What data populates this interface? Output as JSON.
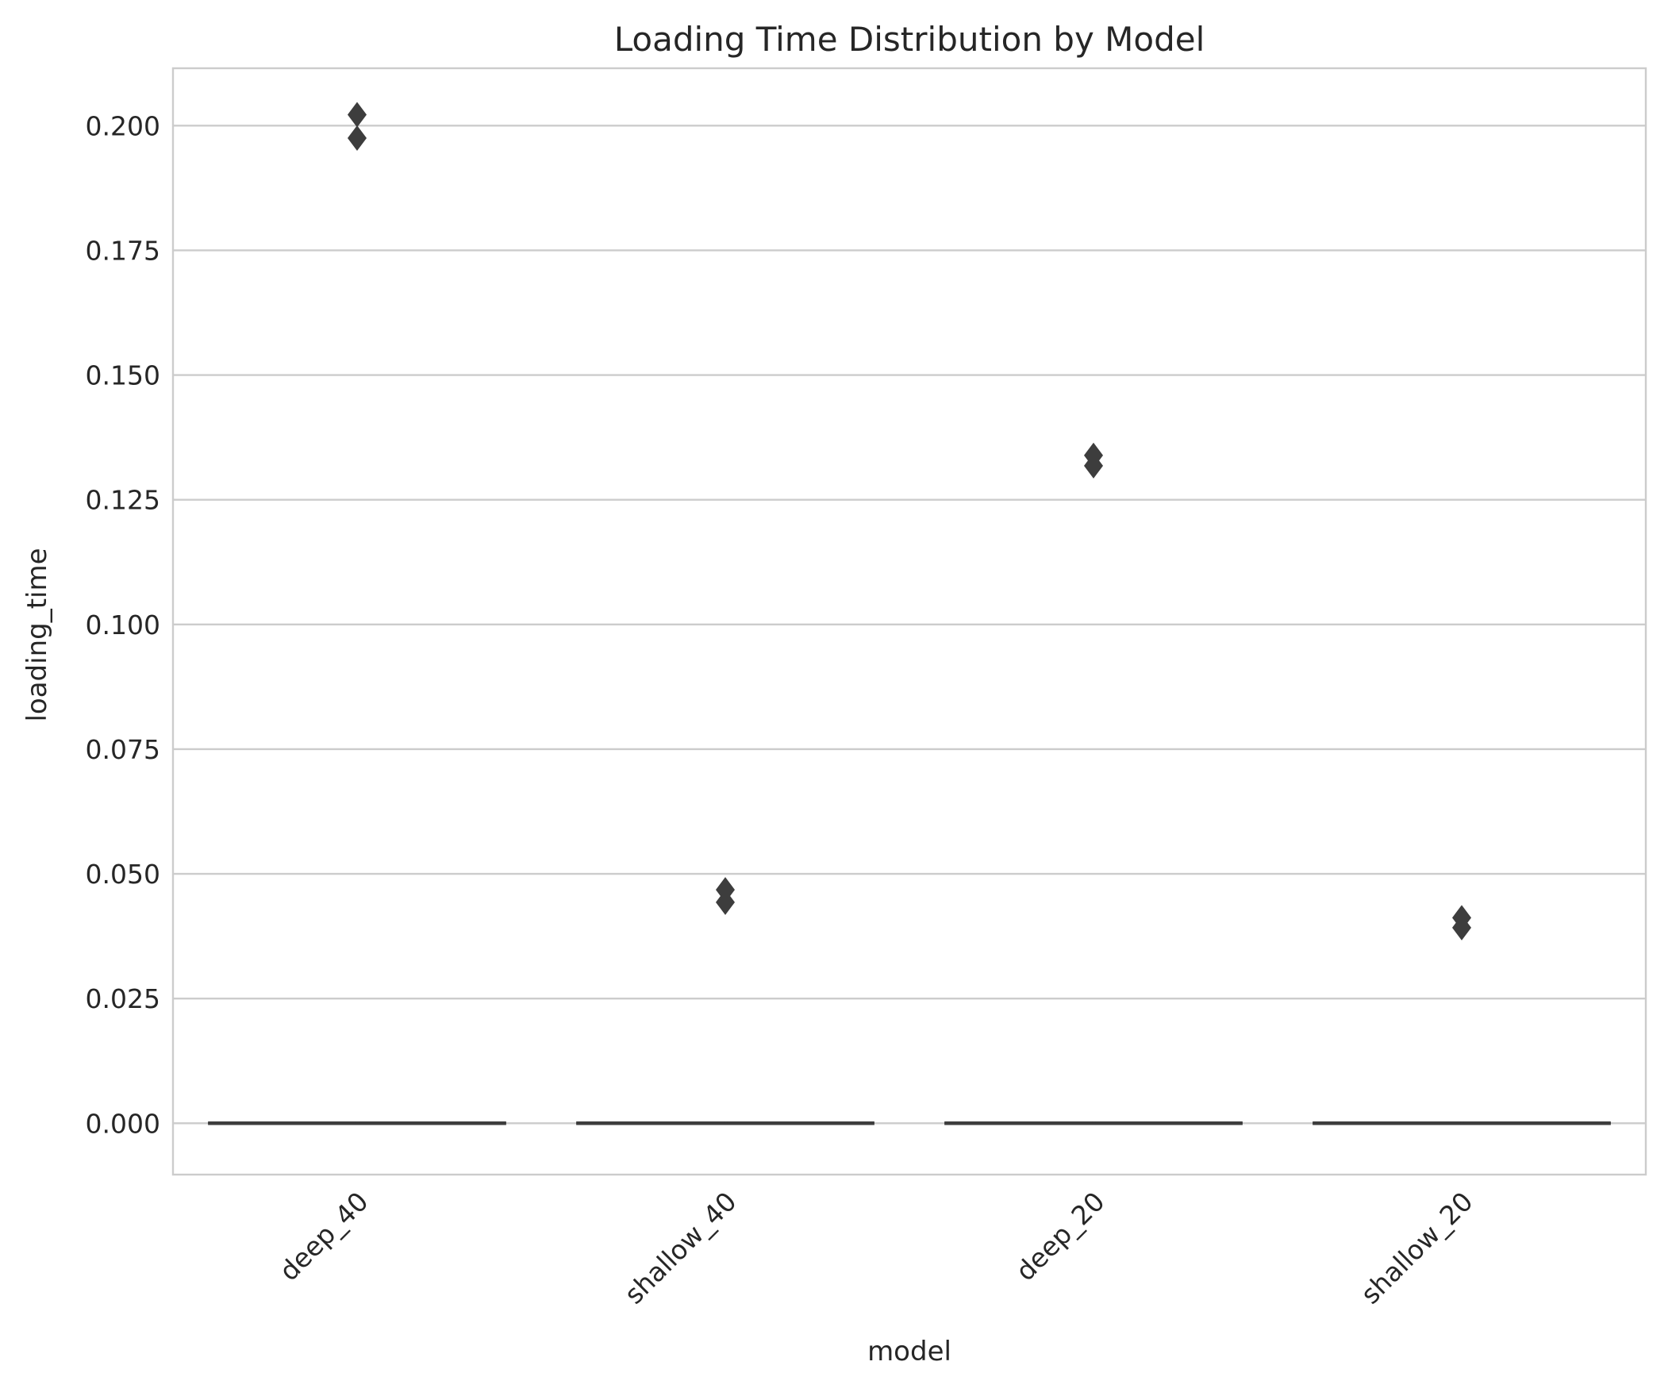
{
  "chart_data": {
    "type": "box",
    "title": "Loading Time Distribution by Model",
    "xlabel": "model",
    "ylabel": "loading_time",
    "categories": [
      "deep_40",
      "shallow_40",
      "deep_20",
      "shallow_20"
    ],
    "ylim": [
      -0.0103,
      0.2115
    ],
    "yticks": [
      0.0,
      0.025,
      0.05,
      0.075,
      0.1,
      0.125,
      0.15,
      0.175,
      0.2
    ],
    "ytick_labels": [
      "0.000",
      "0.025",
      "0.050",
      "0.075",
      "0.100",
      "0.125",
      "0.150",
      "0.175",
      "0.200"
    ],
    "grid": true,
    "boxes": [
      {
        "category": "deep_40",
        "min": 0.0,
        "q1": 0.0,
        "median": 0.0,
        "q3": 0.0,
        "max": 0.0,
        "outliers": [
          0.2022,
          0.1975
        ]
      },
      {
        "category": "shallow_40",
        "min": 0.0,
        "q1": 0.0,
        "median": 0.0,
        "q3": 0.0,
        "max": 0.0,
        "outliers": [
          0.0468,
          0.0443
        ]
      },
      {
        "category": "deep_20",
        "min": 0.0,
        "q1": 0.0,
        "median": 0.0,
        "q3": 0.0,
        "max": 0.0,
        "outliers": [
          0.1339,
          0.1318
        ]
      },
      {
        "category": "shallow_20",
        "min": 0.0,
        "q1": 0.0,
        "median": 0.0,
        "q3": 0.0,
        "max": 0.0,
        "outliers": [
          0.0412,
          0.0392
        ]
      }
    ],
    "colors": {
      "box": "#3d3d3d",
      "grid": "#cccccc",
      "text": "#262626"
    }
  }
}
